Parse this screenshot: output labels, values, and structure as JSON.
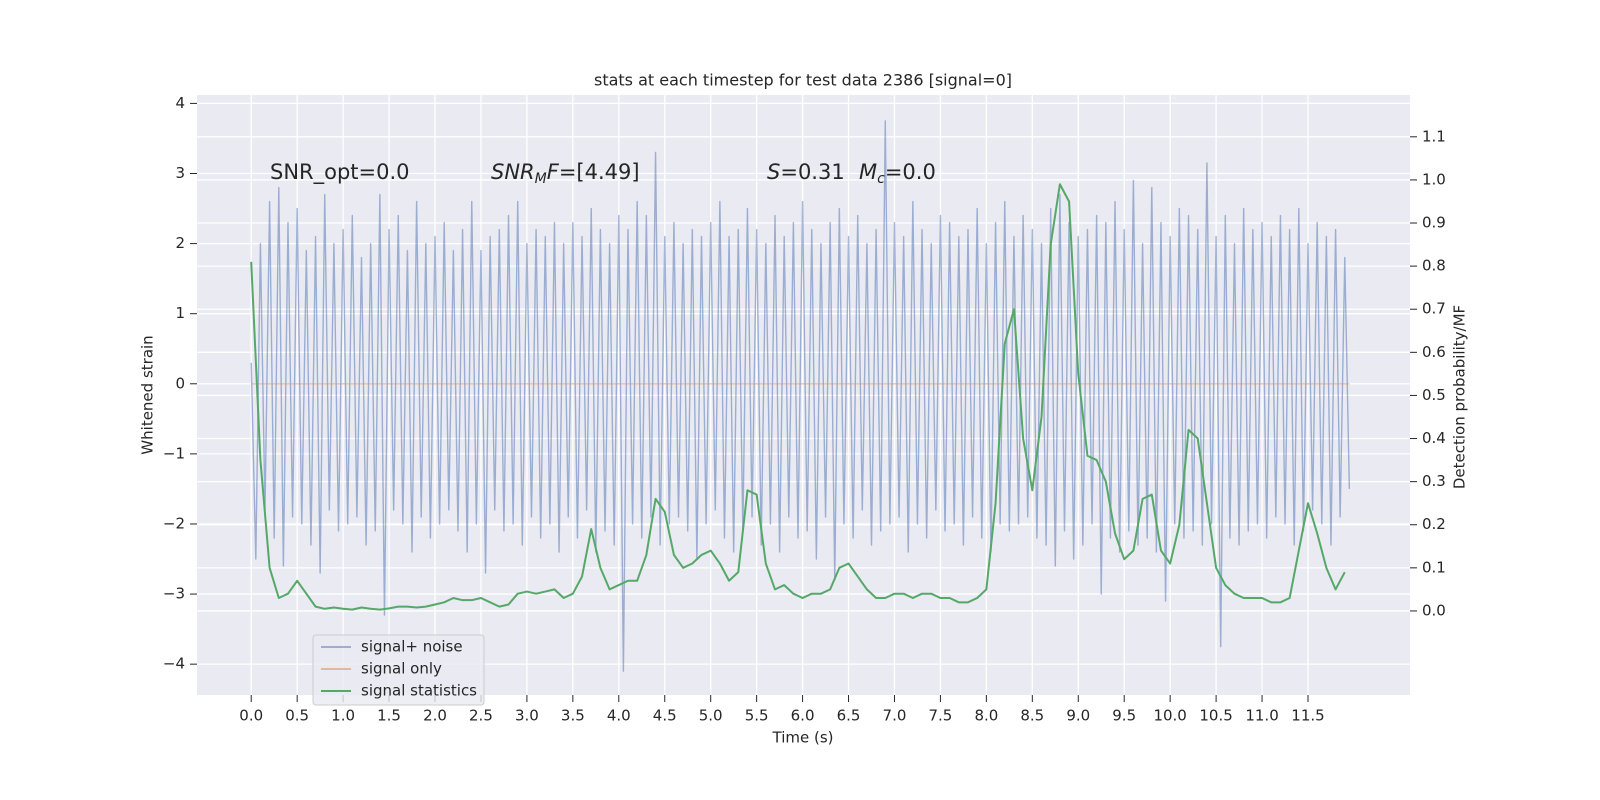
{
  "chart_data": {
    "type": "line",
    "title": "stats at each timestep for test data 2386 [signal=0]",
    "xlabel": "Time (s)",
    "ylabel": "Whitened strain",
    "y2label": "Detection probability/MF",
    "annotations": [
      [
        {
          "text": "SNR_opt=0.0"
        }
      ],
      [
        {
          "text": "SNR",
          "style": "italic"
        },
        {
          "text": "M",
          "style": "sub"
        },
        {
          "text": "F",
          "style": "italic"
        },
        {
          "text": "=[4.49]"
        }
      ],
      [
        {
          "text": "S",
          "style": "italic"
        },
        {
          "text": "=0.31"
        }
      ],
      [
        {
          "text": "M",
          "style": "italic"
        },
        {
          "text": "c",
          "style": "sub"
        },
        {
          "text": "=0.0"
        }
      ]
    ],
    "xlim": [
      -0.59,
      12.61
    ],
    "ylim": [
      -4.44,
      4.12
    ],
    "y2lim": [
      -0.195,
      1.197
    ],
    "xticks": [
      {
        "value": 0,
        "label": "0.0"
      },
      {
        "value": 0.5,
        "label": "0.5"
      },
      {
        "value": 1,
        "label": "1.0"
      },
      {
        "value": 1.5,
        "label": "1.5"
      },
      {
        "value": 2,
        "label": "2.0"
      },
      {
        "value": 2.5,
        "label": "2.5"
      },
      {
        "value": 3,
        "label": "3.0"
      },
      {
        "value": 3.5,
        "label": "3.5"
      },
      {
        "value": 4,
        "label": "4.0"
      },
      {
        "value": 4.5,
        "label": "4.5"
      },
      {
        "value": 5,
        "label": "5.0"
      },
      {
        "value": 5.5,
        "label": "5.5"
      },
      {
        "value": 6,
        "label": "6.0"
      },
      {
        "value": 6.5,
        "label": "6.5"
      },
      {
        "value": 7,
        "label": "7.0"
      },
      {
        "value": 7.5,
        "label": "7.5"
      },
      {
        "value": 8,
        "label": "8.0"
      },
      {
        "value": 8.5,
        "label": "8.5"
      },
      {
        "value": 9,
        "label": "9.0"
      },
      {
        "value": 9.5,
        "label": "9.5"
      },
      {
        "value": 10,
        "label": "10.0"
      },
      {
        "value": 10.5,
        "label": "10.5"
      },
      {
        "value": 11,
        "label": "11.0"
      },
      {
        "value": 11.5,
        "label": "11.5"
      }
    ],
    "yticks": [
      {
        "value": -4,
        "label": "−4"
      },
      {
        "value": -3,
        "label": "−3"
      },
      {
        "value": -2,
        "label": "−2"
      },
      {
        "value": -1,
        "label": "−1"
      },
      0,
      1,
      2,
      3,
      4
    ],
    "y2ticks": [
      {
        "value": 0,
        "label": "0.0"
      },
      {
        "value": 0.1,
        "label": "0.1"
      },
      {
        "value": 0.2,
        "label": "0.2"
      },
      {
        "value": 0.3,
        "label": "0.3"
      },
      {
        "value": 0.4,
        "label": "0.4"
      },
      {
        "value": 0.5,
        "label": "0.5"
      },
      {
        "value": 0.6,
        "label": "0.6"
      },
      {
        "value": 0.7,
        "label": "0.7"
      },
      {
        "value": 0.8,
        "label": "0.8"
      },
      {
        "value": 0.9,
        "label": "0.9"
      },
      {
        "value": 1,
        "label": "1.0"
      },
      {
        "value": 1.1,
        "label": "1.1"
      }
    ],
    "grid": true,
    "legend": "lower left",
    "series": [
      {
        "name": "signal+ noise",
        "color": "#4c72b0",
        "opacity": 0.5,
        "x": [
          0,
          0.05,
          0.1,
          0.15,
          0.2,
          0.25,
          0.3,
          0.35,
          0.4,
          0.45,
          0.5,
          0.55,
          0.6,
          0.65,
          0.7,
          0.75,
          0.8,
          0.85,
          0.9,
          0.95,
          1,
          1.05,
          1.1,
          1.15,
          1.2,
          1.25,
          1.3,
          1.35,
          1.4,
          1.45,
          1.5,
          1.55,
          1.6,
          1.65,
          1.7,
          1.75,
          1.8,
          1.85,
          1.9,
          1.95,
          2,
          2.05,
          2.1,
          2.15,
          2.2,
          2.25,
          2.3,
          2.35,
          2.4,
          2.45,
          2.5,
          2.55,
          2.6,
          2.65,
          2.7,
          2.75,
          2.8,
          2.85,
          2.9,
          2.95,
          3,
          3.05,
          3.1,
          3.15,
          3.2,
          3.25,
          3.3,
          3.35,
          3.4,
          3.45,
          3.5,
          3.55,
          3.6,
          3.65,
          3.7,
          3.75,
          3.8,
          3.85,
          3.9,
          3.95,
          4,
          4.05,
          4.1,
          4.15,
          4.2,
          4.25,
          4.3,
          4.35,
          4.4,
          4.45,
          4.5,
          4.55,
          4.6,
          4.65,
          4.7,
          4.75,
          4.8,
          4.85,
          4.9,
          4.95,
          5,
          5.05,
          5.1,
          5.15,
          5.2,
          5.25,
          5.3,
          5.35,
          5.4,
          5.45,
          5.5,
          5.55,
          5.6,
          5.65,
          5.7,
          5.75,
          5.8,
          5.85,
          5.9,
          5.95,
          6,
          6.05,
          6.1,
          6.15,
          6.2,
          6.25,
          6.3,
          6.35,
          6.4,
          6.45,
          6.5,
          6.55,
          6.6,
          6.65,
          6.7,
          6.75,
          6.8,
          6.85,
          6.9,
          6.95,
          7,
          7.05,
          7.1,
          7.15,
          7.2,
          7.25,
          7.3,
          7.35,
          7.4,
          7.45,
          7.5,
          7.55,
          7.6,
          7.65,
          7.7,
          7.75,
          7.8,
          7.85,
          7.9,
          7.95,
          8,
          8.05,
          8.1,
          8.15,
          8.2,
          8.25,
          8.3,
          8.35,
          8.4,
          8.45,
          8.5,
          8.55,
          8.6,
          8.65,
          8.7,
          8.75,
          8.8,
          8.85,
          8.9,
          8.95,
          9,
          9.05,
          9.1,
          9.15,
          9.2,
          9.25,
          9.3,
          9.35,
          9.4,
          9.45,
          9.5,
          9.55,
          9.6,
          9.65,
          9.7,
          9.75,
          9.8,
          9.85,
          9.9,
          9.95,
          10,
          10.05,
          10.1,
          10.15,
          10.2,
          10.25,
          10.3,
          10.35,
          10.4,
          10.45,
          10.5,
          10.55,
          10.6,
          10.65,
          10.7,
          10.75,
          10.8,
          10.85,
          10.9,
          10.95,
          11,
          11.05,
          11.1,
          11.15,
          11.2,
          11.25,
          11.3,
          11.35,
          11.4,
          11.45,
          11.5,
          11.55,
          11.6,
          11.65,
          11.7,
          11.75,
          11.8,
          11.85,
          11.9,
          11.95
        ],
        "values": [
          0.3,
          -2.5,
          2.0,
          -1.8,
          2.6,
          -2.2,
          2.8,
          -2.6,
          2.3,
          -1.9,
          2.5,
          -2.0,
          1.9,
          -2.3,
          2.1,
          -2.7,
          2.7,
          -1.8,
          2.0,
          -2.1,
          2.2,
          -2.0,
          2.4,
          -1.9,
          1.8,
          -2.3,
          2.0,
          -2.1,
          2.7,
          -3.3,
          2.2,
          -1.8,
          2.4,
          -2.0,
          1.9,
          -2.4,
          2.6,
          -1.9,
          2.0,
          -2.2,
          2.1,
          -2.0,
          2.3,
          -1.8,
          1.9,
          -2.1,
          2.2,
          -2.4,
          2.6,
          -2.0,
          1.9,
          -2.7,
          2.1,
          -1.8,
          2.2,
          -2.1,
          2.4,
          -2.0,
          2.6,
          -2.3,
          2.0,
          -1.9,
          2.2,
          -2.2,
          2.1,
          -2.0,
          2.3,
          -2.4,
          2.0,
          -1.9,
          2.3,
          -2.2,
          2.1,
          -1.8,
          2.5,
          -2.4,
          2.2,
          -2.1,
          2.0,
          -2.3,
          2.4,
          -4.1,
          2.2,
          -2.0,
          2.6,
          -2.2,
          2.4,
          -1.9,
          3.3,
          -2.3,
          2.1,
          -2.0,
          2.3,
          -1.9,
          2.0,
          -2.1,
          2.2,
          -2.5,
          2.1,
          -2.0,
          2.3,
          -1.8,
          2.6,
          -2.2,
          2.1,
          -2.4,
          2.2,
          -2.1,
          2.5,
          -1.9,
          2.2,
          -2.3,
          2.0,
          -2.0,
          2.4,
          -2.4,
          2.1,
          -1.9,
          2.3,
          -2.2,
          2.6,
          -2.1,
          2.2,
          -2.5,
          2.0,
          -1.9,
          2.3,
          -2.8,
          2.5,
          -2.0,
          2.1,
          -2.2,
          2.4,
          -1.8,
          2.0,
          -2.3,
          2.2,
          -2.1,
          3.75,
          -2.0,
          2.3,
          -1.9,
          2.1,
          -2.4,
          2.6,
          -2.0,
          2.2,
          -2.2,
          2.0,
          -1.8,
          2.4,
          -2.1,
          2.3,
          -2.0,
          2.1,
          -2.3,
          2.2,
          -1.9,
          2.5,
          -2.2,
          2.0,
          -2.4,
          2.3,
          -2.0,
          2.6,
          -2.1,
          2.1,
          -2.0,
          2.4,
          -1.9,
          2.2,
          -2.2,
          2.0,
          -2.3,
          2.5,
          -2.6,
          2.7,
          -2.1,
          2.3,
          -2.5,
          2.1,
          -2.3,
          2.2,
          -2.0,
          2.4,
          -3.0,
          2.3,
          -2.2,
          2.6,
          -2.4,
          2.2,
          -2.1,
          2.9,
          -2.3,
          2.0,
          -2.2,
          2.8,
          -2.4,
          2.3,
          -3.1,
          2.1,
          -2.0,
          2.5,
          -2.2,
          2.4,
          -2.1,
          2.2,
          -2.3,
          3.15,
          -2.0,
          2.1,
          -3.75,
          2.4,
          -2.2,
          2.0,
          -2.3,
          2.5,
          -2.1,
          2.2,
          -2.0,
          2.3,
          -2.2,
          2.1,
          -1.9,
          2.4,
          -2.0,
          2.2,
          -2.3,
          2.5,
          -2.1,
          2.0,
          -1.8,
          2.3,
          -2.0,
          2.1,
          -2.3,
          2.2,
          -1.9,
          1.8,
          -1.5
        ]
      },
      {
        "name": "signal only",
        "color": "#dd8452",
        "opacity": 0.5,
        "x": [
          0,
          11.95
        ],
        "values": [
          0,
          0
        ]
      },
      {
        "name": "signal statistics",
        "color": "#55a868",
        "opacity": 1,
        "axis": "y2",
        "x": [
          0,
          0.1,
          0.2,
          0.3,
          0.4,
          0.5,
          0.6,
          0.7,
          0.8,
          0.9,
          1,
          1.1,
          1.2,
          1.3,
          1.4,
          1.5,
          1.6,
          1.7,
          1.8,
          1.9,
          2,
          2.1,
          2.2,
          2.3,
          2.4,
          2.5,
          2.6,
          2.7,
          2.8,
          2.9,
          3,
          3.1,
          3.2,
          3.3,
          3.4,
          3.5,
          3.6,
          3.7,
          3.8,
          3.9,
          4,
          4.1,
          4.2,
          4.3,
          4.4,
          4.5,
          4.6,
          4.7,
          4.8,
          4.9,
          5,
          5.1,
          5.2,
          5.3,
          5.4,
          5.5,
          5.6,
          5.7,
          5.8,
          5.9,
          6,
          6.1,
          6.2,
          6.3,
          6.4,
          6.5,
          6.6,
          6.7,
          6.8,
          6.9,
          7,
          7.1,
          7.2,
          7.3,
          7.4,
          7.5,
          7.6,
          7.7,
          7.8,
          7.9,
          8,
          8.1,
          8.2,
          8.3,
          8.4,
          8.5,
          8.6,
          8.7,
          8.8,
          8.9,
          9,
          9.1,
          9.2,
          9.3,
          9.4,
          9.5,
          9.6,
          9.7,
          9.8,
          9.9,
          10,
          10.1,
          10.2,
          10.3,
          10.4,
          10.5,
          10.6,
          10.7,
          10.8,
          10.9,
          11,
          11.1,
          11.2,
          11.3,
          11.4,
          11.5,
          11.6,
          11.7,
          11.8,
          11.9
        ],
        "values": [
          0.81,
          0.35,
          0.1,
          0.03,
          0.04,
          0.07,
          0.04,
          0.01,
          0.005,
          0.008,
          0.005,
          0.003,
          0.008,
          0.005,
          0.003,
          0.006,
          0.01,
          0.01,
          0.008,
          0.01,
          0.015,
          0.02,
          0.03,
          0.025,
          0.025,
          0.03,
          0.02,
          0.01,
          0.015,
          0.04,
          0.045,
          0.04,
          0.045,
          0.05,
          0.03,
          0.04,
          0.08,
          0.19,
          0.1,
          0.05,
          0.06,
          0.07,
          0.07,
          0.13,
          0.26,
          0.23,
          0.13,
          0.1,
          0.11,
          0.13,
          0.14,
          0.11,
          0.07,
          0.09,
          0.28,
          0.27,
          0.11,
          0.05,
          0.06,
          0.04,
          0.03,
          0.04,
          0.04,
          0.05,
          0.1,
          0.11,
          0.08,
          0.05,
          0.03,
          0.03,
          0.04,
          0.04,
          0.03,
          0.04,
          0.04,
          0.03,
          0.03,
          0.02,
          0.02,
          0.03,
          0.05,
          0.25,
          0.62,
          0.7,
          0.4,
          0.28,
          0.45,
          0.85,
          0.99,
          0.95,
          0.55,
          0.36,
          0.35,
          0.3,
          0.18,
          0.12,
          0.14,
          0.26,
          0.27,
          0.14,
          0.11,
          0.2,
          0.42,
          0.4,
          0.25,
          0.1,
          0.06,
          0.04,
          0.03,
          0.03,
          0.03,
          0.02,
          0.02,
          0.03,
          0.14,
          0.25,
          0.18,
          0.1,
          0.05,
          0.09
        ]
      }
    ]
  }
}
